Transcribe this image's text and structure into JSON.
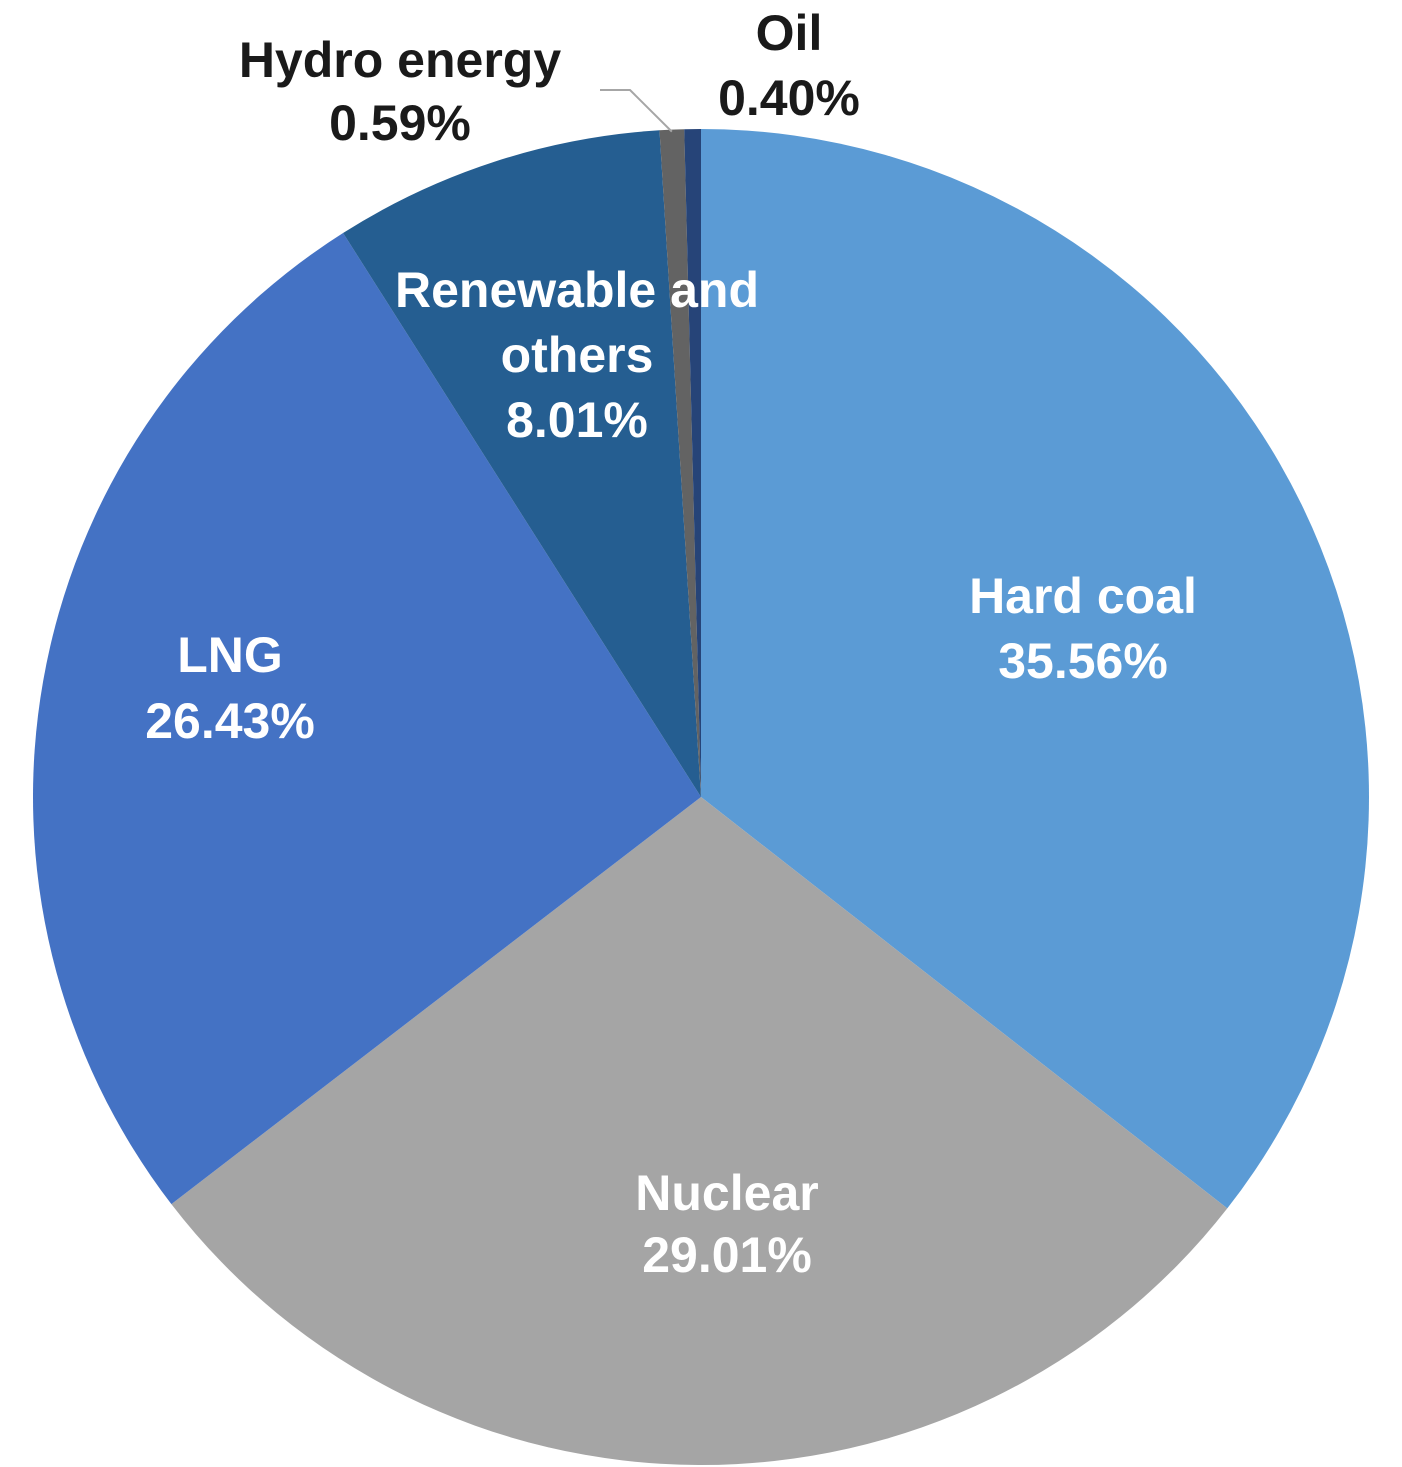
{
  "chart_data": {
    "type": "pie",
    "title": "",
    "slices": [
      {
        "label": "Hard coal",
        "value": 35.56,
        "display": "35.56%",
        "color": "#5b9bd5",
        "label_position": "inside"
      },
      {
        "label": "Nuclear",
        "value": 29.01,
        "display": "29.01%",
        "color": "#a5a5a5",
        "label_position": "inside"
      },
      {
        "label": "LNG",
        "value": 26.43,
        "display": "26.43%",
        "color": "#4472c4",
        "label_position": "inside"
      },
      {
        "label": "Renewable and others",
        "value": 8.01,
        "display": "8.01%",
        "color": "#255e91",
        "label_position": "inside"
      },
      {
        "label": "Hydro energy",
        "value": 0.59,
        "display": "0.59%",
        "color": "#636363",
        "label_position": "outside"
      },
      {
        "label": "Oil",
        "value": 0.4,
        "display": "0.40%",
        "color": "#264478",
        "label_position": "outside"
      }
    ],
    "start": "top, clockwise",
    "legend": "none"
  }
}
